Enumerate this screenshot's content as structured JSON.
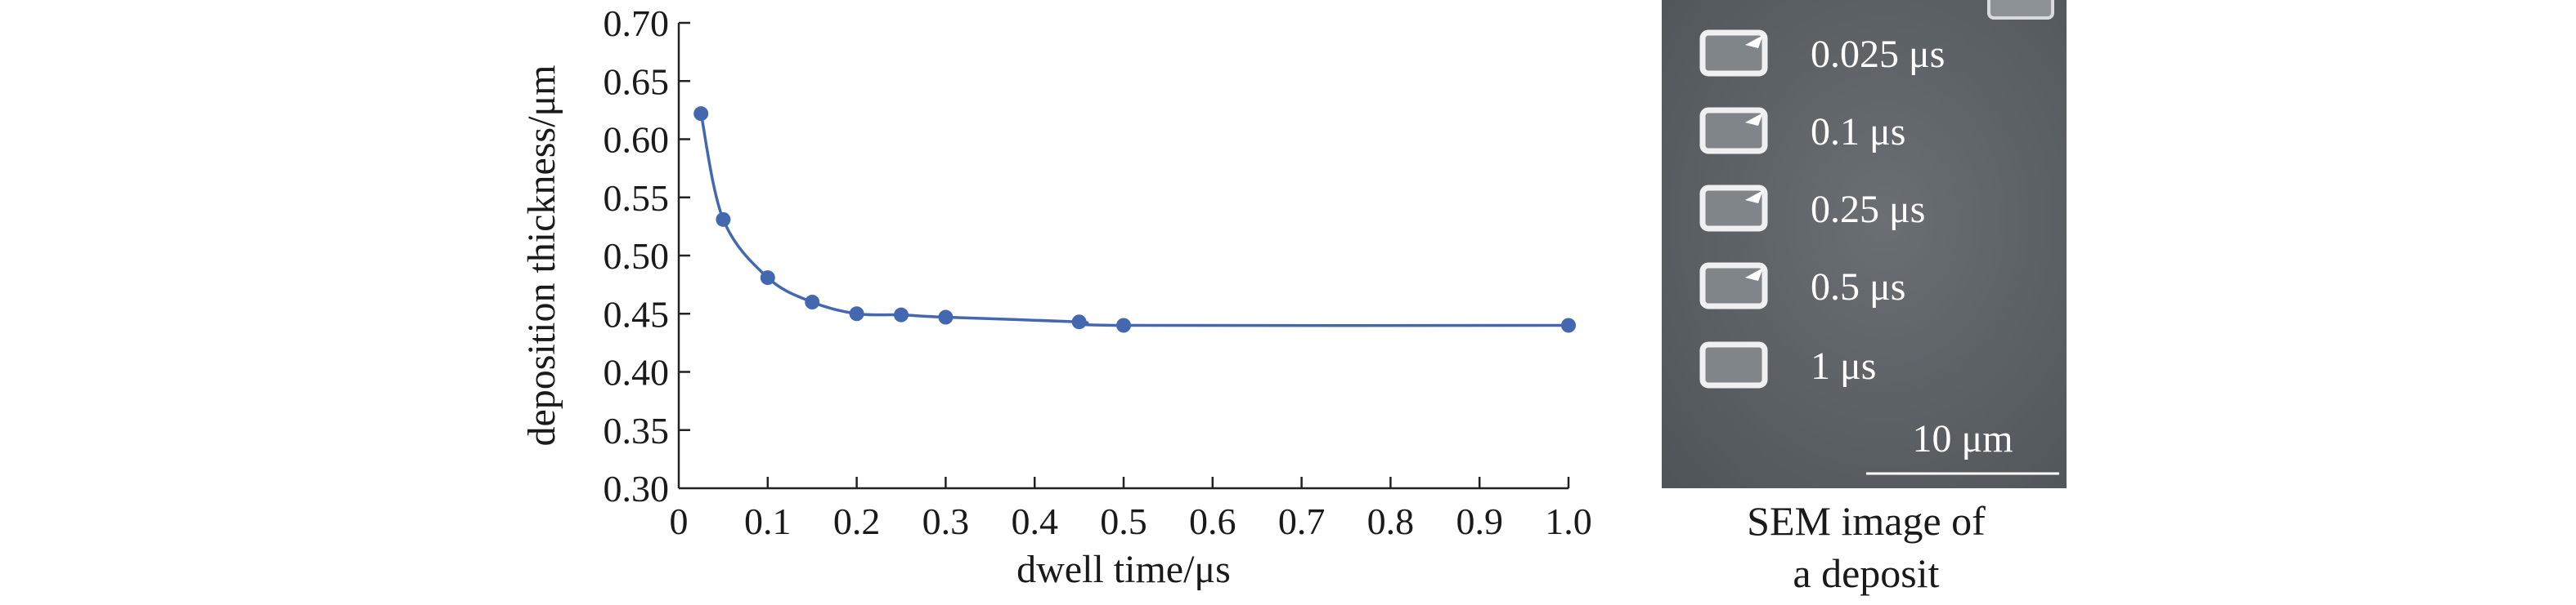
{
  "chart_data": {
    "type": "line",
    "xlabel": "dwell time/μs",
    "ylabel": "deposition thickness/μm",
    "xlim": [
      0,
      1.0
    ],
    "ylim": [
      0.3,
      0.7
    ],
    "x_ticks": [
      "0",
      "0.1",
      "0.2",
      "0.3",
      "0.4",
      "0.5",
      "0.6",
      "0.7",
      "0.8",
      "0.9",
      "1.0"
    ],
    "y_ticks": [
      "0.30",
      "0.35",
      "0.40",
      "0.45",
      "0.50",
      "0.55",
      "0.60",
      "0.65",
      "0.70"
    ],
    "grid": false,
    "series": [
      {
        "color": "#4468b0",
        "marker": "circle",
        "line": "smooth",
        "points": [
          {
            "x": 0.025,
            "y": 0.622
          },
          {
            "x": 0.05,
            "y": 0.531
          },
          {
            "x": 0.1,
            "y": 0.481
          },
          {
            "x": 0.15,
            "y": 0.46
          },
          {
            "x": 0.2,
            "y": 0.45
          },
          {
            "x": 0.25,
            "y": 0.449
          },
          {
            "x": 0.3,
            "y": 0.447
          },
          {
            "x": 0.45,
            "y": 0.443
          },
          {
            "x": 0.5,
            "y": 0.44
          },
          {
            "x": 1.0,
            "y": 0.44
          }
        ]
      }
    ]
  },
  "sem_image": {
    "labels": [
      "0.025 μs",
      "0.1 μs",
      "0.25 μs",
      "0.5 μs",
      "1 μs"
    ],
    "scale_bar_label": "10 μm",
    "background_color": "#5c6166"
  },
  "caption": {
    "line1": "SEM image of",
    "line2": "a deposit"
  }
}
